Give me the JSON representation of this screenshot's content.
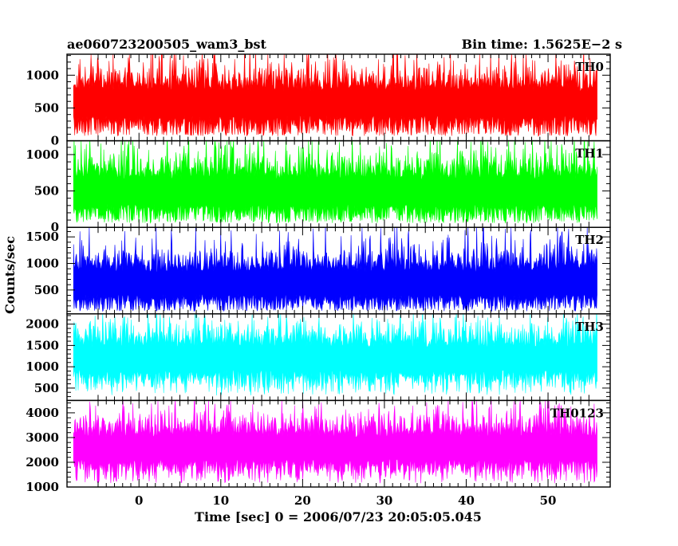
{
  "chart_data": {
    "type": "line",
    "title": "ae060723200505_wam3_bst",
    "subtitle": "Bin time: 1.5625E−2 s",
    "xlabel": "Time [sec] 0 = 2006/07/23 20:05:05.045",
    "ylabel": "Counts/sec",
    "xlim": [
      -8.8,
      57.6
    ],
    "x_ticks": [
      0,
      10,
      20,
      30,
      40,
      50
    ],
    "x_start": -8.0,
    "x_end": 56.0,
    "panels": [
      {
        "label": "TH0",
        "color": "#ff0000",
        "ylim": [
          0,
          1320
        ],
        "y_ticks": [
          0,
          500,
          1000
        ],
        "mean": 560,
        "sigma": 220,
        "floor": 70,
        "peak": 1310
      },
      {
        "label": "TH1",
        "color": "#00ff00",
        "ylim": [
          0,
          1190
        ],
        "y_ticks": [
          0,
          500,
          1000
        ],
        "mean": 480,
        "sigma": 200,
        "floor": 60,
        "peak": 1180
      },
      {
        "label": "TH2",
        "color": "#0000ff",
        "ylim": [
          50,
          1680
        ],
        "y_ticks": [
          500,
          1000,
          1500
        ],
        "mean": 620,
        "sigma": 240,
        "floor": 100,
        "peak": 1660
      },
      {
        "label": "TH3",
        "color": "#00ffff",
        "ylim": [
          210,
          2240
        ],
        "y_ticks": [
          500,
          1000,
          1500,
          2000
        ],
        "mean": 1180,
        "sigma": 310,
        "floor": 330,
        "peak": 2200
      },
      {
        "label": "TH0123",
        "color": "#ff00ff",
        "ylim": [
          1000,
          4500
        ],
        "y_ticks": [
          1000,
          2000,
          3000,
          4000
        ],
        "mean": 2550,
        "sigma": 520,
        "floor": 1150,
        "peak": 4450
      }
    ]
  }
}
